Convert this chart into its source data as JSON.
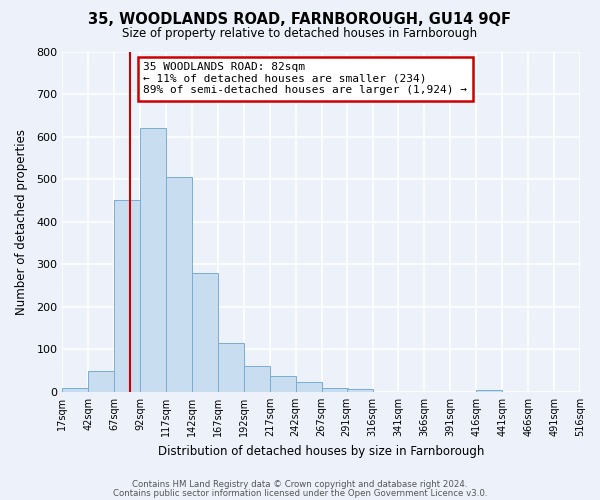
{
  "title": "35, WOODLANDS ROAD, FARNBOROUGH, GU14 9QF",
  "subtitle": "Size of property relative to detached houses in Farnborough",
  "xlabel": "Distribution of detached houses by size in Farnborough",
  "ylabel": "Number of detached properties",
  "bin_edges": [
    17,
    42,
    67,
    92,
    117,
    142,
    167,
    192,
    217,
    242,
    267,
    291,
    316,
    341,
    366,
    391,
    416,
    441,
    466,
    491,
    516
  ],
  "bin_counts": [
    10,
    50,
    450,
    620,
    505,
    280,
    115,
    60,
    38,
    23,
    10,
    7,
    0,
    0,
    0,
    0,
    5,
    0,
    0,
    0
  ],
  "bar_color": "#c9ddf0",
  "bar_edge_color": "#7aadd4",
  "vline_color": "#cc0000",
  "vline_x": 82,
  "annotation_text": "35 WOODLANDS ROAD: 82sqm\n← 11% of detached houses are smaller (234)\n89% of semi-detached houses are larger (1,924) →",
  "annotation_box_facecolor": "white",
  "annotation_box_edgecolor": "#cc0000",
  "ylim": [
    0,
    800
  ],
  "yticks": [
    0,
    100,
    200,
    300,
    400,
    500,
    600,
    700,
    800
  ],
  "plot_bg_color": "#edf2fa",
  "fig_bg_color": "#edf2fa",
  "grid_color": "white",
  "footer_line1": "Contains HM Land Registry data © Crown copyright and database right 2024.",
  "footer_line2": "Contains public sector information licensed under the Open Government Licence v3.0."
}
